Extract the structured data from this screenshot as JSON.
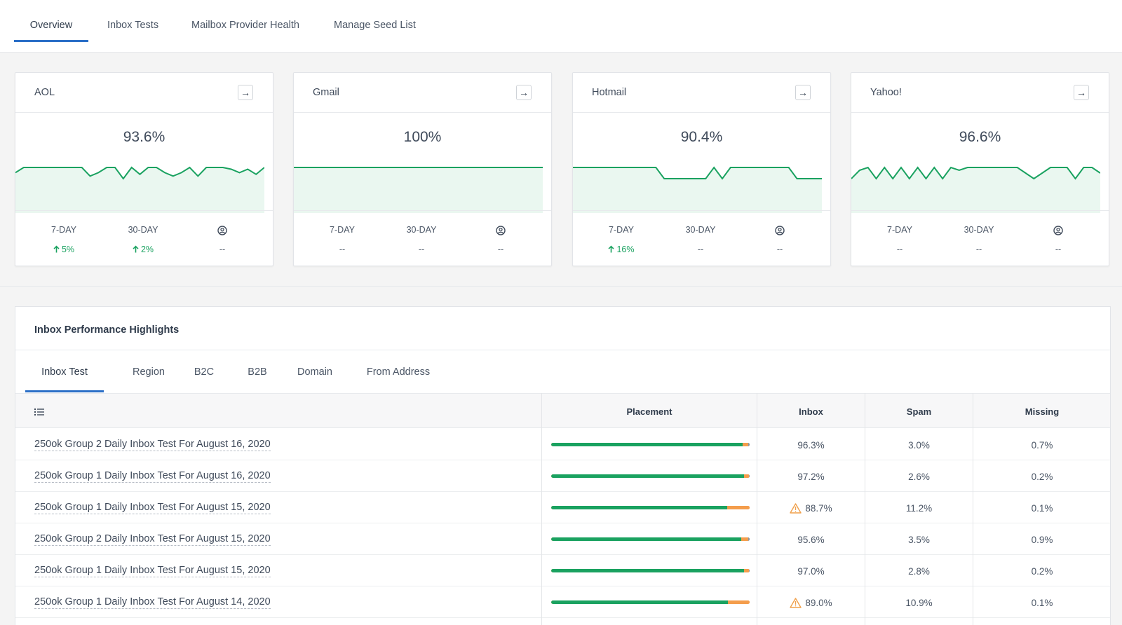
{
  "nav": {
    "tabs": [
      {
        "label": "Overview",
        "active": true
      },
      {
        "label": "Inbox Tests",
        "active": false
      },
      {
        "label": "Mailbox Provider Health",
        "active": false
      },
      {
        "label": "Manage Seed List",
        "active": false
      }
    ]
  },
  "providers": [
    {
      "name": "AOL",
      "percent": "93.6%",
      "labels": {
        "d7": "7-DAY",
        "d30": "30-DAY"
      },
      "d7": "5%",
      "d7_up": true,
      "d30": "2%",
      "d30_up": true,
      "seed": "--",
      "trend": [
        93.0,
        93.6,
        93.6,
        93.6,
        93.6,
        93.6,
        93.6,
        93.6,
        93.6,
        92.6,
        93.0,
        93.6,
        93.6,
        92.3,
        93.6,
        92.8,
        93.6,
        93.6,
        93.0,
        92.6,
        93.0,
        93.6,
        92.6,
        93.6,
        93.6,
        93.6,
        93.4,
        93.0,
        93.4,
        92.8,
        93.6
      ]
    },
    {
      "name": "Gmail",
      "percent": "100%",
      "labels": {
        "d7": "7-DAY",
        "d30": "30-DAY"
      },
      "d7": "--",
      "d7_up": false,
      "d30": "--",
      "d30_up": false,
      "seed": "--",
      "trend": [
        100,
        100,
        100,
        100,
        100,
        100,
        100,
        100,
        100,
        100,
        100,
        100,
        100,
        100,
        100,
        100,
        100,
        100,
        100,
        100,
        100,
        100,
        100,
        100,
        100,
        100,
        100,
        100,
        100,
        100,
        100
      ]
    },
    {
      "name": "Hotmail",
      "percent": "90.4%",
      "labels": {
        "d7": "7-DAY",
        "d30": "30-DAY"
      },
      "d7": "16%",
      "d7_up": true,
      "d30": "--",
      "d30_up": false,
      "seed": "--",
      "trend": [
        90.4,
        90.4,
        90.4,
        90.4,
        90.4,
        90.4,
        90.4,
        90.4,
        90.4,
        90.4,
        90.4,
        88.7,
        88.7,
        88.7,
        88.7,
        88.7,
        88.7,
        90.4,
        88.7,
        90.4,
        90.4,
        90.4,
        90.4,
        90.4,
        90.4,
        90.4,
        90.4,
        88.7,
        88.7,
        88.7,
        88.7
      ]
    },
    {
      "name": "Yahoo!",
      "percent": "96.6%",
      "labels": {
        "d7": "7-DAY",
        "d30": "30-DAY"
      },
      "d7": "--",
      "d7_up": false,
      "d30": "--",
      "d30_up": false,
      "seed": "--",
      "trend": [
        95.8,
        96.4,
        96.6,
        95.8,
        96.6,
        95.8,
        96.6,
        95.8,
        96.6,
        95.8,
        96.6,
        95.8,
        96.6,
        96.4,
        96.6,
        96.6,
        96.6,
        96.6,
        96.6,
        96.6,
        96.6,
        96.2,
        95.8,
        96.2,
        96.6,
        96.6,
        96.6,
        95.8,
        96.6,
        96.6,
        96.2
      ]
    }
  ],
  "panel": {
    "title": "Inbox Performance Highlights",
    "subtabs": [
      {
        "label": "Inbox Test",
        "active": true
      },
      {
        "label": "Region",
        "active": false
      },
      {
        "label": "B2C",
        "active": false
      },
      {
        "label": "B2B",
        "active": false
      },
      {
        "label": "Domain",
        "active": false
      },
      {
        "label": "From Address",
        "active": false
      }
    ],
    "columns": {
      "placement": "Placement",
      "inbox": "Inbox",
      "spam": "Spam",
      "missing": "Missing"
    },
    "rows": [
      {
        "name": "250ok Group 2 Daily Inbox Test For August 16, 2020",
        "inbox": "96.3%",
        "spam": "3.0%",
        "missing": "0.7%",
        "inbox_pct": 96.3,
        "spam_pct": 3.0,
        "missing_pct": 0.7,
        "warning": false
      },
      {
        "name": "250ok Group 1 Daily Inbox Test For August 16, 2020",
        "inbox": "97.2%",
        "spam": "2.6%",
        "missing": "0.2%",
        "inbox_pct": 97.2,
        "spam_pct": 2.6,
        "missing_pct": 0.2,
        "warning": false
      },
      {
        "name": "250ok Group 1 Daily Inbox Test For August 15, 2020",
        "inbox": "88.7%",
        "spam": "11.2%",
        "missing": "0.1%",
        "inbox_pct": 88.7,
        "spam_pct": 11.2,
        "missing_pct": 0.1,
        "warning": true
      },
      {
        "name": "250ok Group 2 Daily Inbox Test For August 15, 2020",
        "inbox": "95.6%",
        "spam": "3.5%",
        "missing": "0.9%",
        "inbox_pct": 95.6,
        "spam_pct": 3.5,
        "missing_pct": 0.9,
        "warning": false
      },
      {
        "name": "250ok Group 1 Daily Inbox Test For August 15, 2020",
        "inbox": "97.0%",
        "spam": "2.8%",
        "missing": "0.2%",
        "inbox_pct": 97.0,
        "spam_pct": 2.8,
        "missing_pct": 0.2,
        "warning": false
      },
      {
        "name": "250ok Group 1 Daily Inbox Test For August 14, 2020",
        "inbox": "89.0%",
        "spam": "10.9%",
        "missing": "0.1%",
        "inbox_pct": 89.0,
        "spam_pct": 10.9,
        "missing_pct": 0.1,
        "warning": true
      }
    ]
  },
  "icons": {
    "card_link": "arrow-right-icon",
    "seed": "user-circle-icon",
    "trend_up": "arrow-up-icon",
    "list": "list-icon",
    "warning": "warning-triangle-icon"
  },
  "colors": {
    "accent": "#2b6fc7",
    "inbox": "#1aa260",
    "spam": "#f49d4c",
    "missing": "#8a939e",
    "warning": "#f0a04b",
    "spark_fill": "#eaf7f0"
  }
}
